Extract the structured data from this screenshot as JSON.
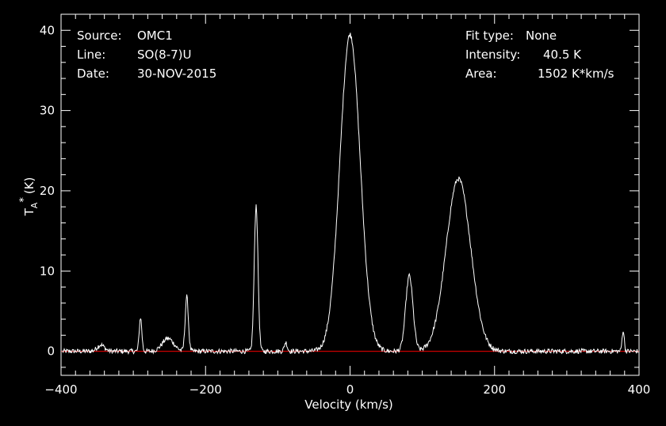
{
  "header_left": {
    "source_label": "Source:",
    "source_value": "OMC1",
    "line_label": "Line:",
    "line_value": "SO(8-7)U",
    "date_label": "Date:",
    "date_value": "30-NOV-2015"
  },
  "header_right": {
    "fit_label": "Fit type:",
    "fit_value": "None",
    "intensity_label": "Intensity:",
    "intensity_value": "40.5 K",
    "area_label": "Area:",
    "area_value": "1502 K*km/s"
  },
  "colors": {
    "background": "#000000",
    "trace": "#ffffff",
    "baseline": "#cc0000",
    "axes": "#ffffff"
  },
  "chart_data": {
    "type": "line",
    "title": "",
    "xlabel": "Velocity (km/s)",
    "ylabel_main": "T",
    "ylabel_sub": "A",
    "ylabel_sup": "*",
    "ylabel_unit": "(K)",
    "xlim": [
      -400,
      400
    ],
    "ylim": [
      -3,
      42
    ],
    "xticks": [
      -400,
      -200,
      0,
      200,
      400
    ],
    "yticks": [
      0,
      10,
      20,
      30,
      40
    ],
    "x_minor_step": 20,
    "y_minor_step": 2,
    "grid": false,
    "baseline_y": 0,
    "components": [
      {
        "name": "peak-a",
        "center": -345,
        "height": 0.8,
        "sigma": 5
      },
      {
        "name": "peak-b",
        "center": -290,
        "height": 4.2,
        "sigma": 1.8
      },
      {
        "name": "peak-c",
        "center": -252,
        "height": 1.6,
        "sigma": 8
      },
      {
        "name": "peak-d",
        "center": -226,
        "height": 6.8,
        "sigma": 2.2
      },
      {
        "name": "peak-e",
        "center": -130,
        "height": 18.2,
        "sigma": 2.6
      },
      {
        "name": "peak-f",
        "center": -89,
        "height": 1.1,
        "sigma": 2
      },
      {
        "name": "peak-g",
        "center": 0,
        "height": 39.5,
        "sigma": 14
      },
      {
        "name": "peak-h",
        "center": 82,
        "height": 9.4,
        "sigma": 5
      },
      {
        "name": "peak-i",
        "center": 150,
        "height": 21.5,
        "sigma": 17
      },
      {
        "name": "peak-j",
        "center": 378,
        "height": 2.6,
        "sigma": 1.5
      }
    ],
    "noise_level": 0.3,
    "channel_step": 0.8
  }
}
